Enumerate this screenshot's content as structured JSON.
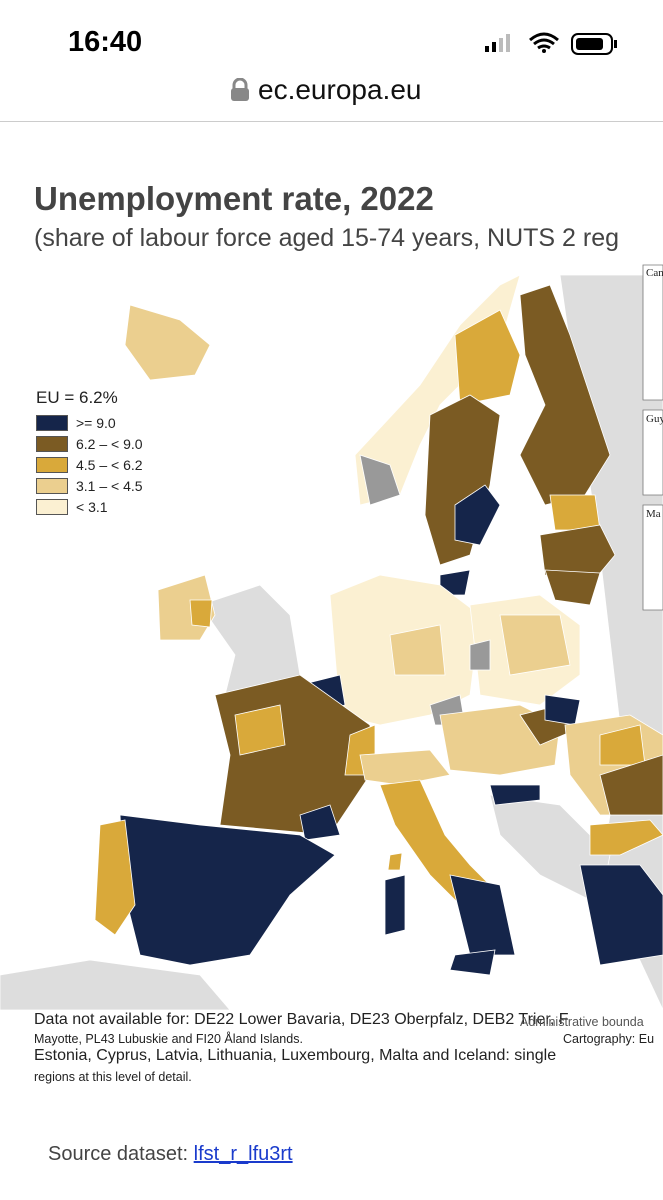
{
  "status_bar": {
    "time": "16:40"
  },
  "browser": {
    "url": "ec.europa.eu"
  },
  "map": {
    "title": "Unemployment rate, 2022",
    "subtitle": "(share of labour force aged 15-74 years, NUTS 2 reg",
    "legend": {
      "heading": "EU = 6.2%",
      "items": [
        {
          "label": ">= 9.0",
          "color": "#15254a"
        },
        {
          "label": "6.2 – < 9.0",
          "color": "#7b5b23"
        },
        {
          "label": "4.5 – < 6.2",
          "color": "#d9a93a"
        },
        {
          "label": "3.1 – < 4.5",
          "color": "#ebcf8f"
        },
        {
          "label": "< 3.1",
          "color": "#fbf0d2"
        }
      ]
    },
    "insets": [
      "Can",
      "Guy",
      "Ma"
    ],
    "notes": {
      "line1": "Data not available for: DE22 Lower Bavaria, DE23 Oberpfalz, DEB2 Trier, F",
      "boundaries": "Administrative bounda",
      "line2": "Mayotte, PL43 Lubuskie and FI20 Åland Islands.",
      "cartography": "Cartography: Eu",
      "line3": "Estonia, Cyprus, Latvia, Lithuania, Luxembourg, Malta and Iceland: single",
      "line4": "regions at this level of detail."
    }
  },
  "source": {
    "label": "Source dataset:",
    "link": "lfst_r_lfu3rt"
  }
}
